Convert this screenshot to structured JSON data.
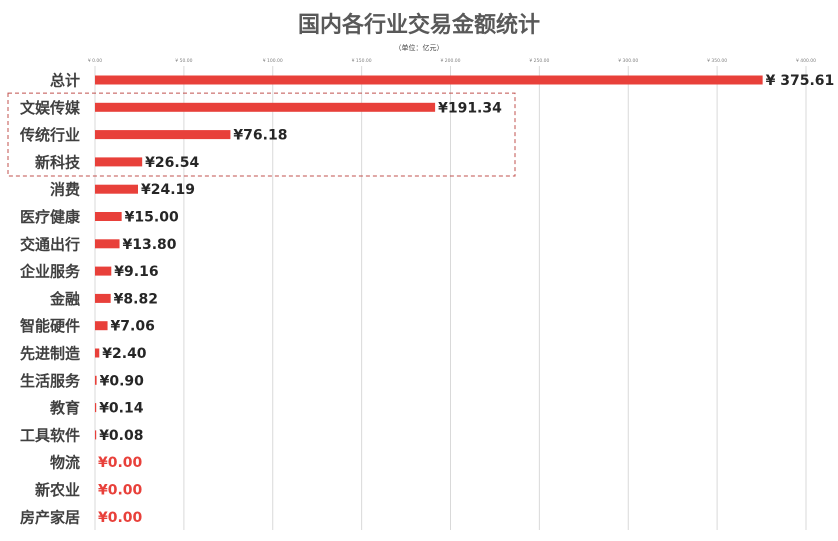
{
  "colors": {
    "bar": "#e8403a",
    "zero_label": "#e8403a",
    "grid": "#d9d9d9",
    "highlight_box": "#c0504d"
  },
  "chart_data": {
    "type": "bar",
    "orientation": "horizontal",
    "title": "国内各行业交易金额统计",
    "subtitle": "（单位：亿元）",
    "xlim": [
      0,
      400
    ],
    "x_ticks": [
      "¥ 0.00",
      "¥ 50.00",
      "¥ 100.00",
      "¥ 150.00",
      "¥ 200.00",
      "¥ 250.00",
      "¥ 300.00",
      "¥ 350.00",
      "¥ 400.00"
    ],
    "grid": true,
    "categories": [
      "总计",
      "文娱传媒",
      "传统行业",
      "新科技",
      "消费",
      "医疗健康",
      "交通出行",
      "企业服务",
      "金融",
      "智能硬件",
      "先进制造",
      "生活服务",
      "教育",
      "工具软件",
      "物流",
      "新农业",
      "房产家居"
    ],
    "values": [
      375.61,
      191.34,
      76.18,
      26.54,
      24.19,
      15.0,
      13.8,
      9.16,
      8.82,
      7.06,
      2.4,
      0.9,
      0.14,
      0.08,
      0.0,
      0.0,
      0.0
    ],
    "value_labels": [
      "¥ 375.61",
      "¥191.34",
      "¥76.18",
      "¥26.54",
      "¥24.19",
      "¥15.00",
      "¥13.80",
      "¥9.16",
      "¥8.82",
      "¥7.06",
      "¥2.40",
      "¥0.90",
      "¥0.14",
      "¥0.08",
      "¥0.00",
      "¥0.00",
      "¥0.00"
    ],
    "highlighted_categories": [
      "文娱传媒",
      "传统行业",
      "新科技"
    ]
  }
}
